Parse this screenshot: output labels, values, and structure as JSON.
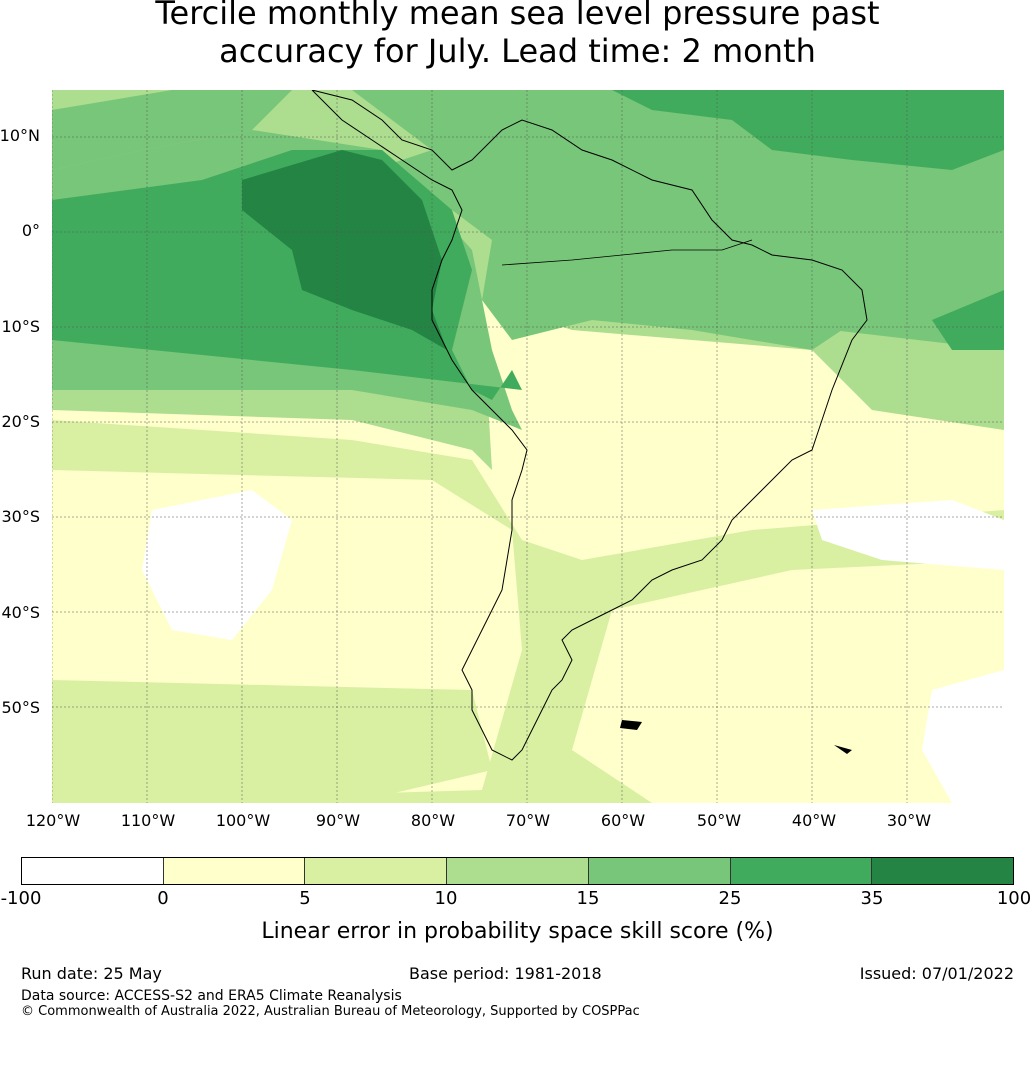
{
  "title_line1": "Tercile monthly mean sea level pressure past",
  "title_line2": "accuracy for July. Lead time: 2 month",
  "map": {
    "lat_labels": [
      "10°N",
      "0°",
      "10°S",
      "20°S",
      "30°S",
      "40°S",
      "50°S"
    ],
    "lon_labels": [
      "120°W",
      "110°W",
      "100°W",
      "90°W",
      "80°W",
      "70°W",
      "60°W",
      "50°W",
      "40°W",
      "30°W"
    ]
  },
  "colorbar": {
    "label": "Linear error in probability space skill score (%)",
    "ticks": [
      "-100",
      "0",
      "5",
      "10",
      "15",
      "25",
      "35",
      "100"
    ],
    "colors": [
      "#ffffff",
      "#ffffcc",
      "#d9f0a3",
      "#addd8e",
      "#78c679",
      "#41ab5d",
      "#238443"
    ]
  },
  "footer": {
    "run_date": "Run date: 25 May",
    "base_period": "Base period: 1981-2018",
    "issued": "Issued: 07/01/2022",
    "data_source": "Data source: ACCESS-S2 and ERA5 Climate Reanalysis",
    "copyright": "© Commonwealth of Australia 2022, Australian Bureau of Meteorology, Supported by COSPPac"
  }
}
